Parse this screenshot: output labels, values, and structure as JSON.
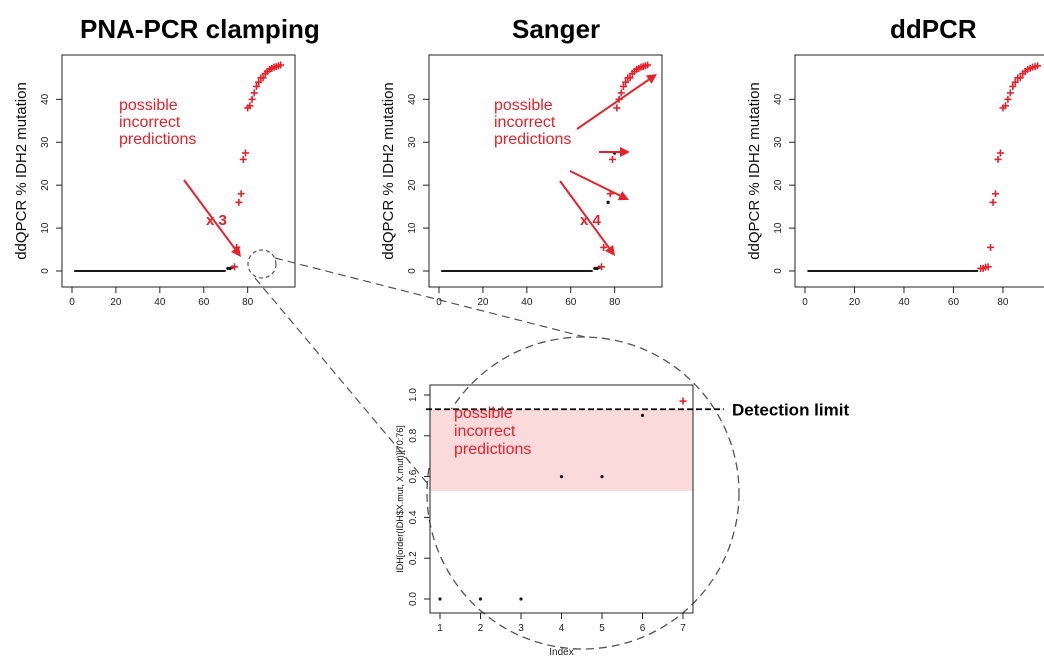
{
  "colors": {
    "marker_plus": "#e8202a",
    "marker_dot": "#1a1a1a",
    "annotation": "#e8202a",
    "highlight_band": "#fadadb",
    "axis": "#222222"
  },
  "chart_data": [
    {
      "type": "scatter",
      "title": "PNA-PCR clamping",
      "ylabel": "ddQPCR % IDH2 mutation",
      "xlim": [
        0,
        97
      ],
      "ylim": [
        0,
        48
      ],
      "xticks": [
        "0",
        "20",
        "40",
        "60",
        "80"
      ],
      "yticks": [
        "0",
        "10",
        "20",
        "30",
        "40"
      ],
      "annotations": [
        "possible\nincorrect\npredictions",
        "x 3"
      ],
      "series": [
        {
          "marker": "dot",
          "x": [
            1,
            70
          ],
          "y": [
            0,
            0
          ],
          "kind": "line"
        },
        {
          "marker": "dot",
          "x": [
            71,
            72,
            73
          ],
          "y": [
            0.6,
            0.6,
            0.9
          ]
        },
        {
          "marker": "plus",
          "x": [
            74,
            75,
            76,
            77,
            78,
            79,
            80,
            81,
            82,
            83,
            84,
            85,
            86,
            87,
            88,
            89,
            90,
            91,
            92,
            93,
            94,
            95
          ],
          "y": [
            0.97,
            5.5,
            16,
            18,
            26,
            27.5,
            38,
            38.5,
            40,
            41.5,
            43,
            44,
            45,
            45,
            46,
            46.5,
            47,
            47.2,
            47.5,
            47.6,
            47.8,
            48
          ]
        }
      ]
    },
    {
      "type": "scatter",
      "title": "Sanger",
      "ylabel": "ddQPCR % IDH2 mutation",
      "xlim": [
        0,
        97
      ],
      "ylim": [
        0,
        48
      ],
      "xticks": [
        "0",
        "20",
        "40",
        "60",
        "80"
      ],
      "yticks": [
        "0",
        "10",
        "20",
        "30",
        "40"
      ],
      "annotations": [
        "possible\nincorrect\npredictions",
        "x 4"
      ],
      "series": [
        {
          "marker": "dot",
          "x": [
            1,
            70
          ],
          "y": [
            0,
            0
          ],
          "kind": "line"
        },
        {
          "marker": "dot",
          "x": [
            71,
            72,
            73,
            77,
            80
          ],
          "y": [
            0.6,
            0.6,
            0.9,
            16,
            27.5
          ]
        },
        {
          "marker": "plus",
          "x": [
            74,
            75,
            78,
            79,
            81,
            82,
            83,
            84,
            85,
            86,
            87,
            88,
            89,
            90,
            91,
            92,
            93,
            94,
            95
          ],
          "y": [
            0.97,
            5.5,
            18,
            26,
            38,
            40,
            41.5,
            43,
            44,
            45,
            45,
            46,
            46.5,
            47,
            47.2,
            47.5,
            47.6,
            47.8,
            48
          ]
        }
      ]
    },
    {
      "type": "scatter",
      "title": "ddPCR",
      "ylabel": "ddQPCR % IDH2 mutation",
      "xlim": [
        0,
        97
      ],
      "ylim": [
        0,
        48
      ],
      "xticks": [
        "0",
        "20",
        "40",
        "60",
        "80"
      ],
      "yticks": [
        "0",
        "10",
        "20",
        "30",
        "40"
      ],
      "series": [
        {
          "marker": "dot",
          "x": [
            1,
            70
          ],
          "y": [
            0,
            0
          ],
          "kind": "line"
        },
        {
          "marker": "plus",
          "x": [
            71,
            72,
            73,
            74,
            75,
            76,
            77,
            78,
            79,
            80,
            81,
            82,
            83,
            84,
            85,
            86,
            87,
            88,
            89,
            90,
            91,
            92,
            93,
            94,
            95
          ],
          "y": [
            0.6,
            0.6,
            0.9,
            0.97,
            5.5,
            16,
            18,
            26,
            27.5,
            38,
            38.5,
            40,
            41.5,
            43,
            44,
            45,
            45,
            46,
            46.5,
            47,
            47.2,
            47.5,
            47.6,
            47.8,
            48
          ]
        }
      ]
    },
    {
      "type": "scatter",
      "title": "",
      "ylabel": "IDH[order(IDH$X.mut, X.mut)][70:76]",
      "xlabel": "Index",
      "xlim": [
        1,
        7
      ],
      "ylim": [
        0,
        1
      ],
      "xticks": [
        "1",
        "2",
        "3",
        "4",
        "5",
        "6",
        "7"
      ],
      "yticks": [
        "0.0",
        "0.2",
        "0.4",
        "0.6",
        "0.8",
        "1.0"
      ],
      "detection_limit": 0.93,
      "detection_limit_label": "Detection limit",
      "highlight_band": [
        0.53,
        0.93
      ],
      "annotations": [
        "possible\nincorrect\npredictions"
      ],
      "series": [
        {
          "marker": "dot",
          "x": [
            1,
            2,
            3,
            4,
            5,
            6
          ],
          "y": [
            0,
            0,
            0,
            0.6,
            0.6,
            0.9
          ]
        },
        {
          "marker": "plus",
          "x": [
            7
          ],
          "y": [
            0.97
          ]
        }
      ]
    }
  ]
}
